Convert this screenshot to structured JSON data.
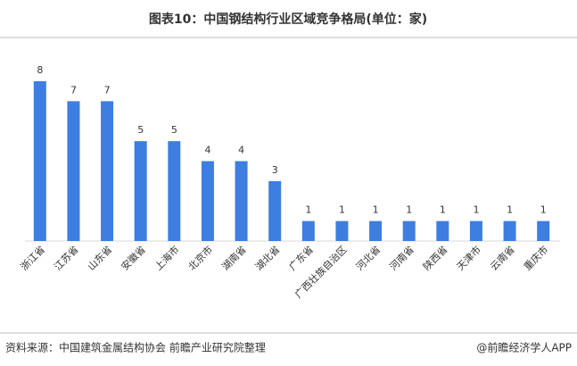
{
  "chart_data": {
    "type": "bar",
    "title": "图表10：中国钢结构行业区域竞争格局(单位：家)",
    "categories": [
      "浙江省",
      "江苏省",
      "山东省",
      "安徽省",
      "上海市",
      "北京市",
      "湖南省",
      "湖北省",
      "广东省",
      "广西壮族自治区",
      "河北省",
      "河南省",
      "陕西省",
      "天津市",
      "云南省",
      "重庆市"
    ],
    "values": [
      8,
      7,
      7,
      5,
      5,
      4,
      4,
      3,
      1,
      1,
      1,
      1,
      1,
      1,
      1,
      1
    ],
    "color": "#3d7ee0",
    "source": "资料来源：中国建筑金属结构协会 前瞻产业研究院整理",
    "credit": "@前瞻经济学人APP"
  }
}
